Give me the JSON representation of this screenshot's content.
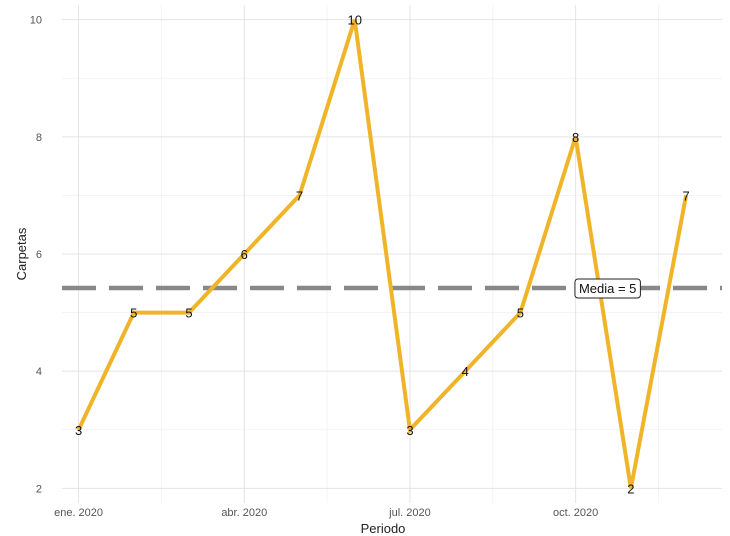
{
  "chart_data": {
    "type": "line",
    "x": [
      "2020-01",
      "2020-02",
      "2020-03",
      "2020-04",
      "2020-05",
      "2020-06",
      "2020-07",
      "2020-08",
      "2020-09",
      "2020-10",
      "2020-11",
      "2020-12"
    ],
    "series": [
      {
        "values": [
          3,
          5,
          5,
          6,
          7,
          10,
          3,
          4,
          5,
          8,
          2,
          7
        ],
        "color": "#f0b429"
      }
    ],
    "data_labels": [
      "3",
      "5",
      "5",
      "6",
      "7",
      "10",
      "3",
      "4",
      "5",
      "8",
      "2",
      "7"
    ],
    "xlabel": "Periodo",
    "ylabel": "Carpetas",
    "x_ticks": [
      {
        "x": "2020-01",
        "label": "ene. 2020"
      },
      {
        "x": "2020-04",
        "label": "abr. 2020"
      },
      {
        "x": "2020-07",
        "label": "jul. 2020"
      },
      {
        "x": "2020-10",
        "label": "oct. 2020"
      }
    ],
    "y_ticks": [
      2,
      4,
      6,
      8,
      10
    ],
    "y_tick_labels": [
      "2",
      "4",
      "6",
      "8",
      "10"
    ],
    "ylim": [
      1.75,
      10.25
    ],
    "mean_line": {
      "value": 5.42,
      "label": "Media = 5",
      "color": "#888888"
    },
    "grid": true,
    "legend": "none"
  }
}
